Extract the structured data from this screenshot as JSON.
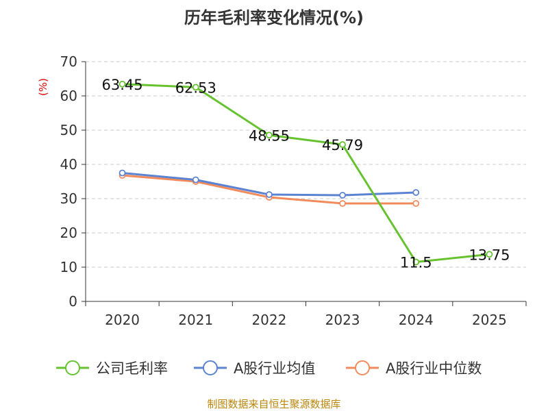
{
  "chart_data": {
    "type": "line",
    "title": "历年毛利率变化情况(%)",
    "ylabel": "(%)",
    "categories": [
      "2020",
      "2021",
      "2022",
      "2023",
      "2024",
      "2025"
    ],
    "ylim": [
      0,
      70
    ],
    "yticks": [
      0,
      10,
      20,
      30,
      40,
      50,
      60,
      70
    ],
    "grid": true,
    "legend_position": "bottom",
    "series": [
      {
        "name": "公司毛利率",
        "color": "#66c22f",
        "values": [
          63.45,
          62.53,
          48.55,
          45.79,
          11.5,
          13.75
        ],
        "labels": [
          "63.45",
          "62.53",
          "48.55",
          "45.79",
          "11.5",
          "13.75"
        ]
      },
      {
        "name": "A股行业均值",
        "color": "#5b83d1",
        "values": [
          37.5,
          35.5,
          31.2,
          31.0,
          31.8,
          null
        ]
      },
      {
        "name": "A股行业中位数",
        "color": "#f28b5c",
        "values": [
          36.8,
          35.0,
          30.4,
          28.6,
          28.6,
          null
        ]
      }
    ]
  },
  "source": "制图数据来自恒生聚源数据库"
}
